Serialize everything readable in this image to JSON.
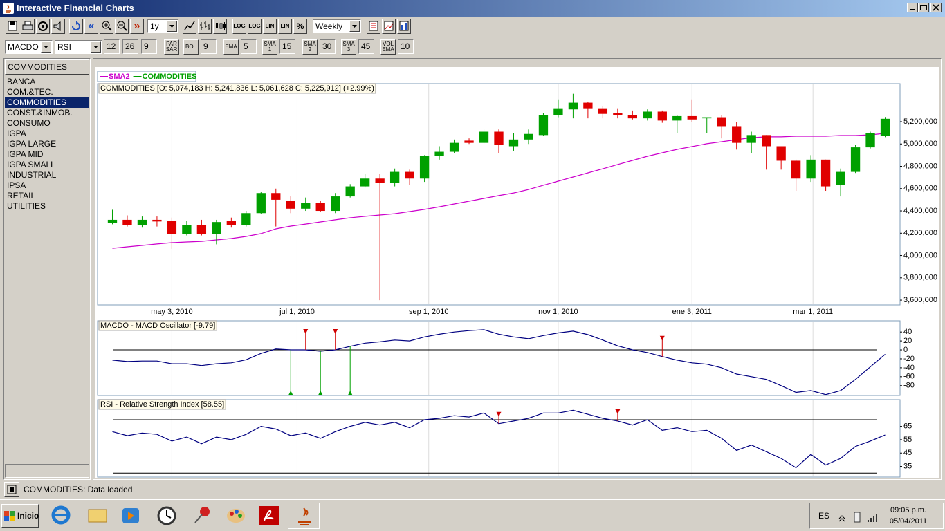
{
  "window": {
    "title": "Interactive Financial Charts"
  },
  "toolbar": {
    "nav_back": "«",
    "nav_forward": "»",
    "period": "1y",
    "scale_buttons": [
      "LOG",
      "LOG",
      "LIN",
      "LIN",
      "%"
    ],
    "interval": "Weekly"
  },
  "indicator_bar": {
    "oscillators": [
      "MACDO",
      "RSI"
    ],
    "macd_params": [
      12,
      26,
      9
    ],
    "overlays": [
      {
        "label": "PAR SAR"
      },
      {
        "label": "BOL",
        "period": 9
      },
      {
        "label": "EMA",
        "period": 5
      },
      {
        "label": "SMA 1",
        "period": 15
      },
      {
        "label": "SMA 2",
        "period": 30
      },
      {
        "label": "SMA 3",
        "period": 45
      },
      {
        "label": "VOL EMA",
        "period": 10
      }
    ]
  },
  "sidebar": {
    "header": "COMMODITIES",
    "items": [
      "BANCA",
      "COM.&TEC.",
      "COMMODITIES",
      "CONST.&INMOB.",
      "CONSUMO",
      "IGPA",
      "IGPA LARGE",
      "IGPA MID",
      "IGPA SMALL",
      "INDUSTRIAL",
      "IPSA",
      "RETAIL",
      "UTILITIES"
    ],
    "selected": 2
  },
  "status": {
    "text": "COMMODITIES: Data loaded"
  },
  "taskbar": {
    "start": "Inicio",
    "language": "ES",
    "time": "09:05 p.m.",
    "date": "05/04/2011"
  },
  "chart_data": [
    {
      "type": "candlestick",
      "info": "COMMODITIES [O: 5,074,183  H: 5,241,836  L: 5,061,628  C: 5,225,912] (+2.99%)",
      "x": [
        "2010-04-05",
        "2010-04-12",
        "2010-04-19",
        "2010-04-26",
        "2010-05-03",
        "2010-05-10",
        "2010-05-17",
        "2010-05-24",
        "2010-05-31",
        "2010-06-07",
        "2010-06-14",
        "2010-06-21",
        "2010-06-28",
        "2010-07-05",
        "2010-07-12",
        "2010-07-19",
        "2010-07-26",
        "2010-08-02",
        "2010-08-09",
        "2010-08-16",
        "2010-08-23",
        "2010-08-30",
        "2010-09-06",
        "2010-09-13",
        "2010-09-20",
        "2010-09-27",
        "2010-10-04",
        "2010-10-11",
        "2010-10-18",
        "2010-10-25",
        "2010-11-01",
        "2010-11-08",
        "2010-11-15",
        "2010-11-22",
        "2010-11-29",
        "2010-12-06",
        "2010-12-13",
        "2010-12-20",
        "2010-12-27",
        "2011-01-03",
        "2011-01-10",
        "2011-01-17",
        "2011-01-24",
        "2011-01-31",
        "2011-02-07",
        "2011-02-14",
        "2011-02-21",
        "2011-02-28",
        "2011-03-07",
        "2011-03-14",
        "2011-03-21",
        "2011-03-28",
        "2011-04-04"
      ],
      "series": [
        {
          "name": "SMA2",
          "color": "#cc00cc",
          "values": [
            4065000,
            4078000,
            4090000,
            4103000,
            4115000,
            4121000,
            4127000,
            4140000,
            4152000,
            4171000,
            4196000,
            4239000,
            4264000,
            4282000,
            4301000,
            4320000,
            4338000,
            4351000,
            4363000,
            4375000,
            4394000,
            4413000,
            4437000,
            4462000,
            4487000,
            4512000,
            4537000,
            4561000,
            4592000,
            4630000,
            4667000,
            4704000,
            4741000,
            4778000,
            4816000,
            4853000,
            4890000,
            4921000,
            4952000,
            4977000,
            5002000,
            5020000,
            5039000,
            5057000,
            5064000,
            5064000,
            5070000,
            5070000,
            5070000,
            5076000,
            5076000,
            5082000,
            5095000
          ]
        },
        {
          "name": "COMMODITIES",
          "color": "#00a000",
          "down_color": "#e00000",
          "open": [
            4290000,
            4320000,
            4270000,
            4320000,
            4310000,
            4190000,
            4270000,
            4190000,
            4310000,
            4270000,
            4380000,
            4560000,
            4490000,
            4420000,
            4470000,
            4400000,
            4530000,
            4620000,
            4690000,
            4650000,
            4750000,
            4690000,
            4890000,
            4930000,
            5030000,
            5010000,
            5110000,
            4980000,
            5040000,
            5080000,
            5260000,
            5310000,
            5370000,
            5320000,
            5280000,
            5260000,
            5230000,
            5290000,
            5210000,
            5250000,
            5230000,
            5240000,
            5160000,
            5010000,
            5080000,
            4980000,
            4850000,
            4690000,
            4860000,
            4630000,
            4750000,
            4970000,
            5074183
          ],
          "high": [
            4410000,
            4360000,
            4350000,
            4350000,
            4340000,
            4310000,
            4320000,
            4320000,
            4340000,
            4400000,
            4570000,
            4600000,
            4530000,
            4520000,
            4490000,
            4560000,
            4640000,
            4730000,
            4730000,
            4780000,
            4770000,
            4900000,
            4980000,
            5040000,
            5050000,
            5140000,
            5130000,
            5100000,
            5130000,
            5280000,
            5400000,
            5450000,
            5380000,
            5340000,
            5320000,
            5300000,
            5310000,
            5300000,
            5260000,
            5400000,
            5240000,
            5260000,
            5200000,
            5110000,
            5080000,
            4980000,
            4860000,
            4900000,
            4860000,
            4780000,
            4990000,
            5110000,
            5241836
          ],
          "low": [
            4280000,
            4260000,
            4250000,
            4260000,
            4060000,
            4180000,
            4180000,
            4100000,
            4250000,
            4260000,
            4370000,
            4260000,
            4380000,
            4400000,
            4390000,
            4380000,
            4520000,
            4610000,
            3600000,
            4620000,
            4630000,
            4660000,
            4860000,
            4920000,
            5000000,
            5000000,
            4920000,
            4940000,
            5000000,
            5070000,
            5240000,
            5230000,
            5230000,
            5230000,
            5230000,
            5220000,
            5210000,
            5190000,
            5100000,
            5200000,
            5100000,
            5050000,
            4950000,
            4920000,
            4770000,
            4770000,
            4580000,
            4660000,
            4580000,
            4530000,
            4740000,
            4960000,
            5061628
          ],
          "close": [
            4320000,
            4270000,
            4320000,
            4305000,
            4190000,
            4270000,
            4190000,
            4300000,
            4270000,
            4380000,
            4560000,
            4500000,
            4420000,
            4470000,
            4400000,
            4530000,
            4620000,
            4690000,
            4650000,
            4750000,
            4690000,
            4890000,
            4930000,
            5010000,
            5010000,
            5110000,
            4990000,
            5040000,
            5090000,
            5260000,
            5320000,
            5370000,
            5320000,
            5270000,
            5260000,
            5230000,
            5290000,
            5210000,
            5250000,
            5220000,
            5240000,
            5160000,
            5010000,
            5080000,
            4980000,
            4850000,
            4690000,
            4860000,
            4620000,
            4750000,
            4970000,
            5100000,
            5225912
          ]
        }
      ],
      "xlim": [
        "2010-03-29",
        "2011-04-11"
      ],
      "xticks": [
        {
          "value": "2010-05-03",
          "label": "may 3, 2010"
        },
        {
          "value": "2010-07-01",
          "label": "jul 1, 2010"
        },
        {
          "value": "2010-09-01",
          "label": "sep 1, 2010"
        },
        {
          "value": "2010-11-01",
          "label": "nov 1, 2010"
        },
        {
          "value": "2011-01-03",
          "label": "ene 3, 2011"
        },
        {
          "value": "2011-03-01",
          "label": "mar 1, 2011"
        }
      ],
      "ylim": [
        3557000,
        5541000
      ],
      "yticks": [
        {
          "value": 3600000,
          "label": "3,600,000"
        },
        {
          "value": 3800000,
          "label": "3,800,000"
        },
        {
          "value": 4000000,
          "label": "4,000,000"
        },
        {
          "value": 4200000,
          "label": "4,200,000"
        },
        {
          "value": 4400000,
          "label": "4,400,000"
        },
        {
          "value": 4600000,
          "label": "4,600,000"
        },
        {
          "value": 4800000,
          "label": "4,800,000"
        },
        {
          "value": 5000000,
          "label": "5,000,000"
        },
        {
          "value": 5200000,
          "label": "5,200,000"
        }
      ],
      "grid": "x"
    },
    {
      "type": "line",
      "title": "MACDO - MACD Oscillator [-9.79]",
      "x": [
        "2010-04-05",
        "2010-04-12",
        "2010-04-19",
        "2010-04-26",
        "2010-05-03",
        "2010-05-10",
        "2010-05-17",
        "2010-05-24",
        "2010-05-31",
        "2010-06-07",
        "2010-06-14",
        "2010-06-21",
        "2010-06-28",
        "2010-07-05",
        "2010-07-12",
        "2010-07-19",
        "2010-07-26",
        "2010-08-02",
        "2010-08-09",
        "2010-08-16",
        "2010-08-23",
        "2010-08-30",
        "2010-09-06",
        "2010-09-13",
        "2010-09-20",
        "2010-09-27",
        "2010-10-04",
        "2010-10-11",
        "2010-10-18",
        "2010-10-25",
        "2010-11-01",
        "2010-11-08",
        "2010-11-15",
        "2010-11-22",
        "2010-11-29",
        "2010-12-06",
        "2010-12-13",
        "2010-12-20",
        "2010-12-27",
        "2011-01-03",
        "2011-01-10",
        "2011-01-17",
        "2011-01-24",
        "2011-01-31",
        "2011-02-07",
        "2011-02-14",
        "2011-02-21",
        "2011-02-28",
        "2011-03-07",
        "2011-03-14",
        "2011-03-21",
        "2011-03-28",
        "2011-04-04"
      ],
      "values": [
        -23,
        -26,
        -25,
        -25,
        -31,
        -31,
        -35,
        -31,
        -29,
        -22,
        -8,
        2,
        0,
        0,
        -3,
        0,
        8,
        15,
        18,
        22,
        20,
        29,
        35,
        40,
        43,
        45,
        35,
        29,
        25,
        32,
        38,
        42,
        34,
        22,
        9,
        0,
        -6,
        -15,
        -23,
        -29,
        -32,
        -40,
        -54,
        -60,
        -66,
        -80,
        -95,
        -91,
        -100,
        -91,
        -66,
        -38,
        -9.79
      ],
      "color": "#000080",
      "xlim": [
        "2010-03-29",
        "2011-04-11"
      ],
      "ylim": [
        -102,
        65
      ],
      "yticks": [
        40,
        20,
        0,
        -20,
        -40,
        -60,
        -80
      ],
      "reference_lines": [
        0
      ],
      "buy_signals": [
        "2010-06-28",
        "2010-07-12",
        "2010-07-26"
      ],
      "sell_signals": [
        "2010-07-05",
        "2010-07-19",
        "2010-12-20"
      ]
    },
    {
      "type": "line",
      "title": "RSI - Relative Strength Index [58.55]",
      "x": [
        "2010-04-05",
        "2010-04-12",
        "2010-04-19",
        "2010-04-26",
        "2010-05-03",
        "2010-05-10",
        "2010-05-17",
        "2010-05-24",
        "2010-05-31",
        "2010-06-07",
        "2010-06-14",
        "2010-06-21",
        "2010-06-28",
        "2010-07-05",
        "2010-07-12",
        "2010-07-19",
        "2010-07-26",
        "2010-08-02",
        "2010-08-09",
        "2010-08-16",
        "2010-08-23",
        "2010-08-30",
        "2010-09-06",
        "2010-09-13",
        "2010-09-20",
        "2010-09-27",
        "2010-10-04",
        "2010-10-11",
        "2010-10-18",
        "2010-10-25",
        "2010-11-01",
        "2010-11-08",
        "2010-11-15",
        "2010-11-22",
        "2010-11-29",
        "2010-12-06",
        "2010-12-13",
        "2010-12-20",
        "2010-12-27",
        "2011-01-03",
        "2011-01-10",
        "2011-01-17",
        "2011-01-24",
        "2011-01-31",
        "2011-02-07",
        "2011-02-14",
        "2011-02-21",
        "2011-02-28",
        "2011-03-07",
        "2011-03-14",
        "2011-03-21",
        "2011-03-28",
        "2011-04-04"
      ],
      "values": [
        61,
        58,
        60,
        59,
        54,
        57,
        52,
        57,
        55,
        59,
        65,
        63,
        58,
        60,
        56,
        61,
        65,
        68,
        66,
        68,
        64,
        70,
        71,
        73,
        72,
        75,
        67,
        69,
        71,
        75,
        75,
        77,
        74,
        71,
        69,
        66,
        70,
        62,
        64,
        61,
        62,
        56,
        47,
        51,
        46,
        41,
        34,
        44,
        36,
        41,
        50,
        54,
        58.55
      ],
      "color": "#000080",
      "xlim": [
        "2010-03-29",
        "2011-04-11"
      ],
      "ylim": [
        27,
        85
      ],
      "yticks": [
        65,
        55,
        45,
        35
      ],
      "reference_lines": [
        70,
        30
      ],
      "sell_signals": [
        "2010-10-04",
        "2010-11-29"
      ]
    }
  ]
}
